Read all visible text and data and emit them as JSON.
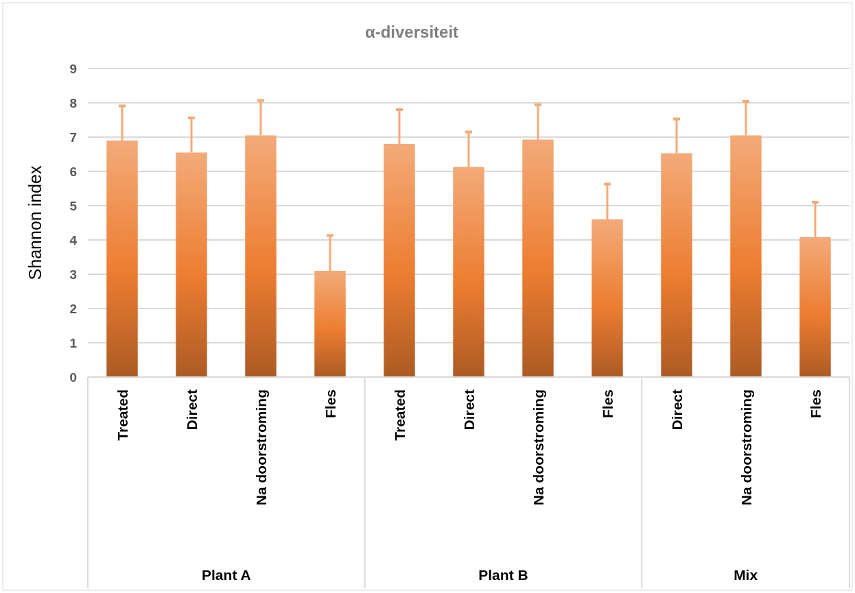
{
  "chart_data": {
    "type": "bar",
    "title": "α-diversiteit",
    "ylabel": "Shannon index",
    "categories": [
      "Treated",
      "Direct",
      "Na doorstroming",
      "Fles",
      "Treated",
      "Direct",
      "Na doorstroming",
      "Fles",
      "Direct",
      "Na doorstroming",
      "Fles"
    ],
    "values": [
      6.9,
      6.55,
      7.05,
      3.1,
      6.8,
      6.13,
      6.93,
      4.6,
      6.53,
      7.05,
      4.08
    ],
    "errors": [
      [
        6.9,
        7.91
      ],
      [
        6.55,
        7.56
      ],
      [
        7.05,
        8.07
      ],
      [
        3.1,
        4.13
      ],
      [
        6.8,
        7.8
      ],
      [
        6.13,
        7.15
      ],
      [
        6.93,
        7.94
      ],
      [
        4.6,
        5.63
      ],
      [
        6.53,
        7.53
      ],
      [
        7.05,
        8.04
      ],
      [
        4.08,
        5.1
      ]
    ],
    "color": "#ed7d31",
    "ylim": [
      0,
      9
    ],
    "yticks": [
      0,
      1,
      2,
      3,
      4,
      5,
      6,
      7,
      8,
      9
    ],
    "grid": "y",
    "annotations": [
      "Plant A",
      "Plant B",
      "Mix"
    ]
  }
}
